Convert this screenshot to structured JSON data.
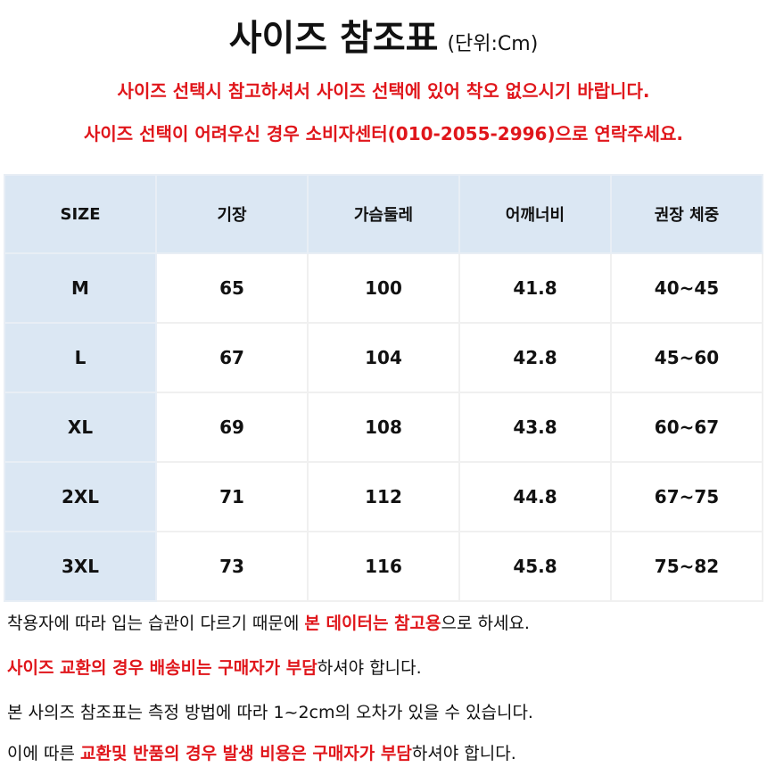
{
  "header": {
    "title": "사이즈 참조표",
    "unit": "(단위:Cm)",
    "notices": [
      "사이즈 선택시 참고하셔서 사이즈 선택에 있어 착오 없으시기 바랍니다.",
      "사이즈 선택이 어려우신 경우 소비자센터(010-2055-2996)으로 연락주세요."
    ]
  },
  "table": {
    "columns": [
      "SIZE",
      "기장",
      "가슴둘레",
      "어깨너비",
      "권장 체중"
    ],
    "rows": [
      [
        "M",
        65,
        100,
        41.8,
        "40~45"
      ],
      [
        "L",
        67,
        104,
        42.8,
        "45~60"
      ],
      [
        "XL",
        69,
        108,
        43.8,
        "60~67"
      ],
      [
        "2XL",
        71,
        112,
        44.8,
        "67~75"
      ],
      [
        "3XL",
        73,
        116,
        45.8,
        "75~82"
      ]
    ]
  },
  "notes": [
    [
      {
        "text": "착용자에 따라 입는 습관이 다르기 때문에 ",
        "color": "#111111"
      },
      {
        "text": "본 데이터는 참고용",
        "color": "#e0161b"
      },
      {
        "text": "으로 하세요.",
        "color": "#111111"
      }
    ],
    [
      {
        "text": "사이즈 교환의 경우 배송비는 구매자가 부담",
        "color": "#e0161b"
      },
      {
        "text": "하셔야 합니다.",
        "color": "#111111"
      }
    ],
    [
      {
        "text": "본 사의즈 참조표는 측정 방법에 따라 1~2cm의 오차가 있을 수 있습니다.",
        "color": "#111111"
      }
    ],
    [
      {
        "text": "이에 따른 ",
        "color": "#111111"
      },
      {
        "text": "교환및 반품의 경우 발생 비용은 구매자가 부담",
        "color": "#e0161b"
      },
      {
        "text": "하셔야 합니다.",
        "color": "#111111"
      }
    ]
  ]
}
